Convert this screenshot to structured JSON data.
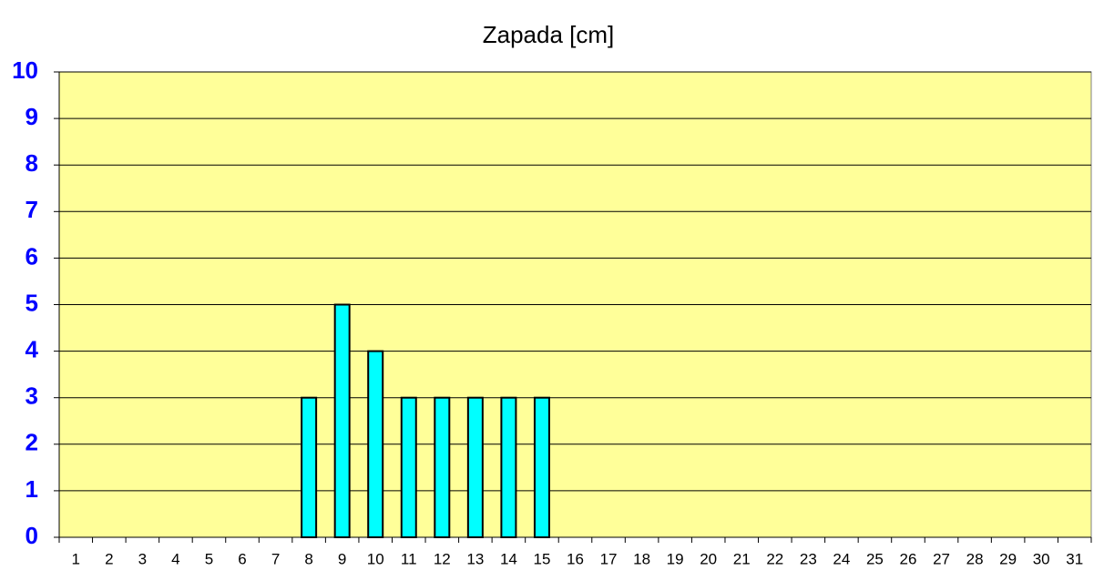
{
  "chart_data": {
    "type": "bar",
    "title": "Zapada [cm]",
    "categories": [
      "1",
      "2",
      "3",
      "4",
      "5",
      "6",
      "7",
      "8",
      "9",
      "10",
      "11",
      "12",
      "13",
      "14",
      "15",
      "16",
      "17",
      "18",
      "19",
      "20",
      "21",
      "22",
      "23",
      "24",
      "25",
      "26",
      "27",
      "28",
      "29",
      "30",
      "31"
    ],
    "values": [
      0,
      0,
      0,
      0,
      0,
      0,
      0,
      3,
      5,
      4,
      3,
      3,
      3,
      3,
      3,
      0,
      0,
      0,
      0,
      0,
      0,
      0,
      0,
      0,
      0,
      0,
      0,
      0,
      0,
      0,
      0
    ],
    "color": "#00ffff",
    "ylim": [
      0,
      10
    ],
    "yticks": [
      0,
      1,
      2,
      3,
      4,
      5,
      6,
      7,
      8,
      9,
      10
    ],
    "grid": true
  }
}
